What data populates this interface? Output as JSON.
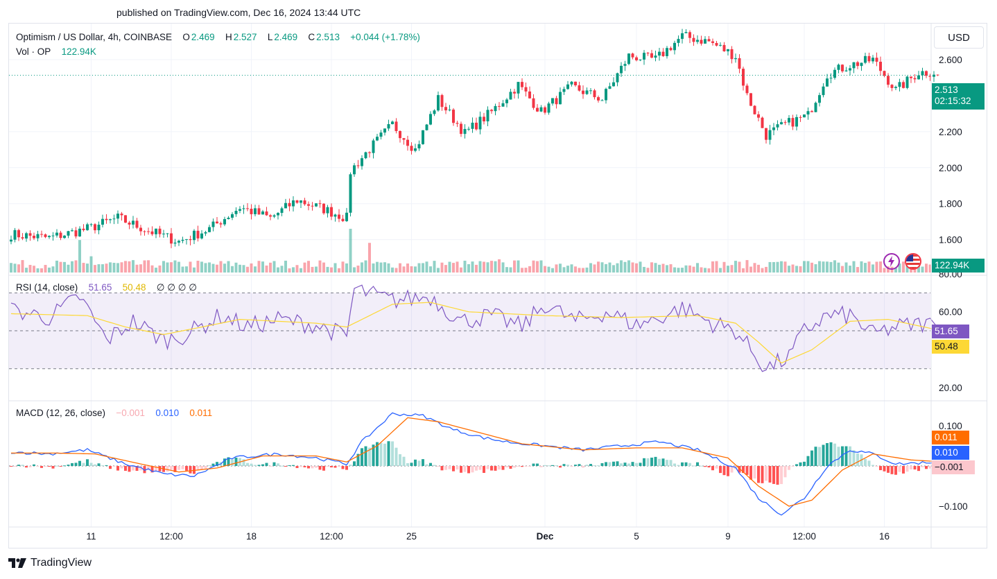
{
  "header": {
    "published": "published on TradingView.com, Dec 16, 2024 13:44 UTC"
  },
  "legend": {
    "symbol": "Optimism / US Dollar, 4h, COINBASE",
    "o_label": "O",
    "o_val": "2.469",
    "h_label": "H",
    "h_val": "2.527",
    "l_label": "L",
    "l_val": "2.469",
    "c_label": "C",
    "c_val": "2.513",
    "change": "+0.044 (+1.78%)",
    "vol_label": "Vol · OP",
    "vol_val": "122.94K"
  },
  "rsi_legend": {
    "label": "RSI (14, close)",
    "v1": "51.65",
    "v2": "50.48",
    "extras": "∅ ∅ ∅ ∅"
  },
  "macd_legend": {
    "label": "MACD (12, 26, close)",
    "v1": "−0.001",
    "v2": "0.010",
    "v3": "0.011"
  },
  "currency_button": "USD",
  "price_badge": {
    "price": "2.513",
    "timer": "02:15:32"
  },
  "volume_badge": "122.94K",
  "rsi_badges": {
    "rsi": "51.65",
    "ma": "50.48"
  },
  "macd_badges": {
    "signal": "0.011",
    "macd": "0.010",
    "hist": "−0.001"
  },
  "footer": {
    "brand": "TradingView"
  },
  "colors": {
    "up": "#089981",
    "down": "#f23645",
    "rsi": "#7e57c2",
    "rsi_ma": "#fdd835",
    "macd": "#2962ff",
    "signal": "#ff6d00"
  },
  "icons": [
    "lightning-icon",
    "us-flag-icon",
    "tradingview-logo-icon"
  ],
  "chart_data": [
    {
      "type": "candlestick",
      "title": "Optimism / US Dollar, 4h, COINBASE",
      "x_ticks": [
        "11",
        "12:00",
        "18",
        "12:00",
        "25",
        "Dec",
        "5",
        "9",
        "12:00",
        "16"
      ],
      "y_ticks": [
        "1.600",
        "1.800",
        "2.000",
        "2.200",
        "2.600"
      ],
      "ylim": [
        1.41,
        2.8
      ],
      "last_price": 2.513,
      "close_anchors": [
        [
          0,
          1.63
        ],
        [
          10,
          1.61
        ],
        [
          20,
          1.66
        ],
        [
          28,
          1.72
        ],
        [
          36,
          1.65
        ],
        [
          44,
          1.59
        ],
        [
          52,
          1.66
        ],
        [
          60,
          1.78
        ],
        [
          68,
          1.72
        ],
        [
          75,
          1.82
        ],
        [
          82,
          1.77
        ],
        [
          88,
          1.72
        ],
        [
          89,
          1.98
        ],
        [
          93,
          2.08
        ],
        [
          100,
          2.24
        ],
        [
          106,
          2.1
        ],
        [
          112,
          2.38
        ],
        [
          119,
          2.19
        ],
        [
          126,
          2.31
        ],
        [
          133,
          2.46
        ],
        [
          139,
          2.31
        ],
        [
          147,
          2.45
        ],
        [
          155,
          2.38
        ],
        [
          162,
          2.62
        ],
        [
          169,
          2.6
        ],
        [
          176,
          2.73
        ],
        [
          183,
          2.7
        ],
        [
          190,
          2.62
        ],
        [
          193,
          2.4
        ],
        [
          198,
          2.18
        ],
        [
          203,
          2.24
        ],
        [
          209,
          2.29
        ],
        [
          214,
          2.52
        ],
        [
          220,
          2.57
        ],
        [
          226,
          2.6
        ],
        [
          232,
          2.43
        ],
        [
          238,
          2.53
        ],
        [
          242,
          2.53
        ],
        [
          243,
          2.513
        ]
      ],
      "volume": {
        "last": "122.94K",
        "spikes": [
          [
            18,
            3.0
          ],
          [
            21,
            2.3
          ],
          [
            89,
            4.2
          ],
          [
            94,
            3.4
          ],
          [
            128,
            2.3
          ],
          [
            201,
            1.7
          ]
        ]
      }
    },
    {
      "type": "line",
      "title": "RSI (14, close)",
      "y_ticks": [
        "20.00",
        "40.00",
        "60.00",
        "80.00"
      ],
      "ylim": [
        16,
        80
      ],
      "bands": [
        70,
        50,
        30
      ],
      "series": [
        {
          "name": "RSI",
          "last": 51.65,
          "anchors": [
            [
              0,
              61
            ],
            [
              10,
              57
            ],
            [
              18,
              68
            ],
            [
              25,
              45
            ],
            [
              32,
              55
            ],
            [
              40,
              45
            ],
            [
              46,
              48
            ],
            [
              55,
              58
            ],
            [
              62,
              52
            ],
            [
              70,
              56
            ],
            [
              80,
              53
            ],
            [
              88,
              47
            ],
            [
              90,
              72
            ],
            [
              100,
              66
            ],
            [
              110,
              68
            ],
            [
              118,
              55
            ],
            [
              126,
              58
            ],
            [
              134,
              52
            ],
            [
              140,
              64
            ],
            [
              148,
              55
            ],
            [
              156,
              60
            ],
            [
              164,
              53
            ],
            [
              170,
              57
            ],
            [
              176,
              62
            ],
            [
              184,
              54
            ],
            [
              190,
              50
            ],
            [
              194,
              40
            ],
            [
              198,
              30
            ],
            [
              204,
              36
            ],
            [
              208,
              50
            ],
            [
              214,
              58
            ],
            [
              220,
              58
            ],
            [
              226,
              48
            ],
            [
              232,
              52
            ],
            [
              240,
              54
            ],
            [
              243,
              51.65
            ]
          ]
        },
        {
          "name": "RSI-based MA",
          "last": 50.48,
          "anchors": [
            [
              0,
              59
            ],
            [
              20,
              58
            ],
            [
              30,
              52
            ],
            [
              40,
              48
            ],
            [
              50,
              52
            ],
            [
              60,
              56
            ],
            [
              80,
              54
            ],
            [
              88,
              52
            ],
            [
              100,
              64
            ],
            [
              110,
              65
            ],
            [
              120,
              60
            ],
            [
              140,
              58
            ],
            [
              160,
              57
            ],
            [
              180,
              58
            ],
            [
              190,
              54
            ],
            [
              196,
              44
            ],
            [
              202,
              33
            ],
            [
              210,
              40
            ],
            [
              220,
              55
            ],
            [
              230,
              56
            ],
            [
              243,
              50.48
            ]
          ]
        }
      ]
    },
    {
      "type": "line",
      "title": "MACD (12, 26, close)",
      "y_ticks": [
        "−0.100",
        "0.100"
      ],
      "ylim": [
        -0.14,
        0.155
      ],
      "series": [
        {
          "name": "MACD",
          "last": 0.01,
          "anchors": [
            [
              0,
              0.035
            ],
            [
              10,
              0.03
            ],
            [
              20,
              0.04
            ],
            [
              30,
              0.005
            ],
            [
              40,
              -0.02
            ],
            [
              48,
              -0.025
            ],
            [
              58,
              0.02
            ],
            [
              70,
              0.03
            ],
            [
              80,
              0.02
            ],
            [
              88,
              0.005
            ],
            [
              92,
              0.06
            ],
            [
              100,
              0.13
            ],
            [
              108,
              0.125
            ],
            [
              116,
              0.09
            ],
            [
              124,
              0.07
            ],
            [
              130,
              0.06
            ],
            [
              140,
              0.05
            ],
            [
              150,
              0.04
            ],
            [
              160,
              0.05
            ],
            [
              170,
              0.06
            ],
            [
              180,
              0.04
            ],
            [
              190,
              -0.005
            ],
            [
              196,
              -0.08
            ],
            [
              202,
              -0.12
            ],
            [
              208,
              -0.08
            ],
            [
              214,
              0.0
            ],
            [
              220,
              0.04
            ],
            [
              226,
              0.03
            ],
            [
              232,
              0.005
            ],
            [
              243,
              0.01
            ]
          ]
        },
        {
          "name": "Signal",
          "last": 0.011,
          "anchors": [
            [
              0,
              0.032
            ],
            [
              12,
              0.032
            ],
            [
              22,
              0.03
            ],
            [
              34,
              0.005
            ],
            [
              44,
              -0.015
            ],
            [
              54,
              -0.005
            ],
            [
              66,
              0.025
            ],
            [
              80,
              0.025
            ],
            [
              88,
              0.01
            ],
            [
              96,
              0.05
            ],
            [
              104,
              0.12
            ],
            [
              112,
              0.11
            ],
            [
              124,
              0.08
            ],
            [
              134,
              0.055
            ],
            [
              150,
              0.04
            ],
            [
              164,
              0.045
            ],
            [
              176,
              0.045
            ],
            [
              188,
              0.02
            ],
            [
              196,
              -0.05
            ],
            [
              204,
              -0.1
            ],
            [
              210,
              -0.085
            ],
            [
              218,
              -0.01
            ],
            [
              226,
              0.03
            ],
            [
              236,
              0.015
            ],
            [
              243,
              0.011
            ]
          ]
        }
      ],
      "histogram_last": -0.001
    }
  ]
}
